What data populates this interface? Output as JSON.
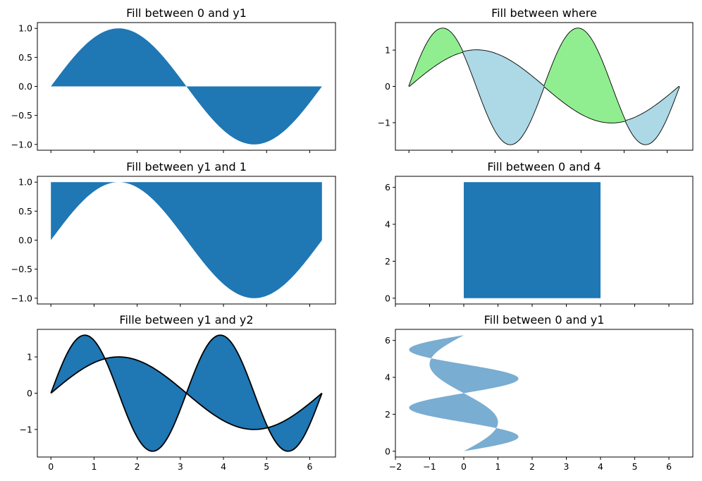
{
  "chart_data": [
    {
      "type": "area",
      "title": "Fill between 0 and y1",
      "x": "linspace(0, 2π, 200)",
      "series": [
        {
          "kind": "fill_between",
          "y_top": "sin(x)",
          "y_bottom": 0,
          "color": "#1f77b4"
        }
      ],
      "xlim": [
        -0.314,
        6.597
      ],
      "ylim": [
        -1.1,
        1.1
      ],
      "xticks": [
        0,
        1,
        2,
        3,
        4,
        5,
        6
      ],
      "yticks": [
        -1.0,
        -0.5,
        0.0,
        0.5,
        1.0
      ],
      "ytick_labels": [
        "−1.0",
        "−0.5",
        "0.0",
        "0.5",
        "1.0"
      ],
      "x_tick_labels_shown": false,
      "grid": false
    },
    {
      "type": "area",
      "title": "Fill between where",
      "x": "linspace(0, 2π, 200)",
      "series": [
        {
          "kind": "line",
          "y": "sin(x)",
          "color": "#000000"
        },
        {
          "kind": "line",
          "y": "1.6·sin(2x)",
          "color": "#000000"
        },
        {
          "kind": "fill_between",
          "y_top": "1.6·sin(2x)",
          "y_bottom": "sin(x)",
          "where": "y2 > y1",
          "color": "#90ee90"
        },
        {
          "kind": "fill_between",
          "y_top": "1.6·sin(2x)",
          "y_bottom": "sin(x)",
          "where": "y2 <= y1",
          "color": "#add8e6"
        }
      ],
      "xlim": [
        -0.314,
        6.597
      ],
      "ylim": [
        -1.76,
        1.76
      ],
      "xticks": [
        0,
        1,
        2,
        3,
        4,
        5,
        6
      ],
      "yticks": [
        -1,
        0,
        1
      ],
      "ytick_labels": [
        "−1",
        "0",
        "1"
      ],
      "x_tick_labels_shown": false,
      "grid": false
    },
    {
      "type": "area",
      "title": "Fill between y1 and 1",
      "x": "linspace(0, 2π, 200)",
      "series": [
        {
          "kind": "fill_between",
          "y_top": 1,
          "y_bottom": "sin(x)",
          "color": "#1f77b4"
        }
      ],
      "xlim": [
        -0.314,
        6.597
      ],
      "ylim": [
        -1.1,
        1.1
      ],
      "xticks": [
        0,
        1,
        2,
        3,
        4,
        5,
        6
      ],
      "yticks": [
        -1.0,
        -0.5,
        0.0,
        0.5,
        1.0
      ],
      "ytick_labels": [
        "−1.0",
        "−0.5",
        "0.0",
        "0.5",
        "1.0"
      ],
      "x_tick_labels_shown": false,
      "grid": false
    },
    {
      "type": "area",
      "title": "Fill between 0 and 4",
      "orientation": "horizontal",
      "y": "linspace(0, 2π, 200)",
      "series": [
        {
          "kind": "fill_betweenx",
          "x_left": 0,
          "x_right": 4,
          "color": "#1f77b4"
        }
      ],
      "xlim": [
        -2,
        6.7
      ],
      "ylim": [
        -0.314,
        6.597
      ],
      "xticks": [
        -2,
        -1,
        0,
        1,
        2,
        3,
        4,
        5,
        6
      ],
      "yticks": [
        0,
        2,
        4,
        6
      ],
      "ytick_labels": [
        "0",
        "2",
        "4",
        "6"
      ],
      "x_tick_labels_shown": false,
      "grid": false
    },
    {
      "type": "area",
      "title": "Fille between y1 and y2",
      "x": "linspace(0, 2π, 200)",
      "series": [
        {
          "kind": "fill_between",
          "y_top": "1.6·sin(2x)",
          "y_bottom": "sin(x)",
          "color": "#1f77b4"
        },
        {
          "kind": "line",
          "y": "sin(x)",
          "color": "#000000"
        },
        {
          "kind": "line",
          "y": "1.6·sin(2x)",
          "color": "#000000"
        }
      ],
      "xlim": [
        -0.314,
        6.597
      ],
      "ylim": [
        -1.76,
        1.76
      ],
      "xticks": [
        0,
        1,
        2,
        3,
        4,
        5,
        6
      ],
      "xtick_labels": [
        "0",
        "1",
        "2",
        "3",
        "4",
        "5",
        "6"
      ],
      "yticks": [
        -1,
        0,
        1
      ],
      "ytick_labels": [
        "−1",
        "0",
        "1"
      ],
      "x_tick_labels_shown": true,
      "grid": false
    },
    {
      "type": "area",
      "title": "Fill between 0 and y1",
      "orientation": "horizontal",
      "y": "linspace(0, 2π, 200)",
      "series": [
        {
          "kind": "fill_betweenx",
          "x_left": "1.6·sin(2y)",
          "x_right": "sin(y)",
          "color": "#1f77b4",
          "alpha": 0.6
        }
      ],
      "xlim": [
        -2,
        6.7
      ],
      "ylim": [
        -0.314,
        6.597
      ],
      "xticks": [
        -2,
        -1,
        0,
        1,
        2,
        3,
        4,
        5,
        6
      ],
      "xtick_labels": [
        "−2",
        "−1",
        "0",
        "1",
        "2",
        "3",
        "4",
        "5",
        "6"
      ],
      "yticks": [
        0,
        2,
        4,
        6
      ],
      "ytick_labels": [
        "0",
        "2",
        "4",
        "6"
      ],
      "x_tick_labels_shown": true,
      "grid": false
    }
  ]
}
